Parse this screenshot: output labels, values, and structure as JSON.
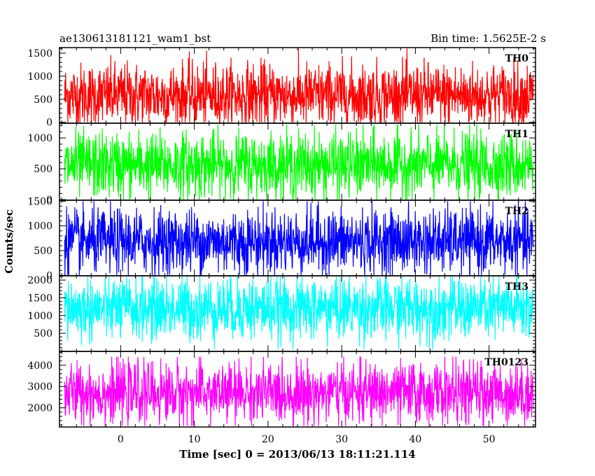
{
  "header": {
    "left_title": "ae130613181121_wam1_bst",
    "right_title": "Bin time: 1.5625E-2 s"
  },
  "axes": {
    "xlabel": "Time [sec] 0 = 2013/06/13 18:11:21.114",
    "ylabel": "Counts/sec"
  },
  "chart_data": {
    "type": "line",
    "x_range": [
      -8.3,
      56.3
    ],
    "x_ticks": [
      0,
      10,
      20,
      30,
      40,
      50
    ],
    "x_minor_step": 2,
    "data_x_range": [
      -7.6,
      56.0
    ],
    "panels": [
      {
        "name": "TH0",
        "color": "#ff0000",
        "ylim": [
          -20,
          1620
        ],
        "y_ticks": [
          0,
          500,
          1000,
          1500
        ],
        "approx_mean": 580,
        "approx_min": 0,
        "approx_max": 1600
      },
      {
        "name": "TH1",
        "color": "#00ff00",
        "ylim": [
          -10,
          1240
        ],
        "y_ticks": [
          0,
          500,
          1000
        ],
        "approx_mean": 560,
        "approx_min": 0,
        "approx_max": 1220
      },
      {
        "name": "TH2",
        "color": "#0000ff",
        "ylim": [
          -10,
          1520
        ],
        "y_ticks": [
          0,
          500,
          1000,
          1500
        ],
        "approx_mean": 680,
        "approx_min": 0,
        "approx_max": 1500
      },
      {
        "name": "TH3",
        "color": "#00ffff",
        "ylim": [
          -10,
          2120
        ],
        "y_ticks": [
          500,
          1000,
          1500,
          2000
        ],
        "approx_mean": 1200,
        "approx_min": 50,
        "approx_max": 2100
      },
      {
        "name": "TH0123",
        "color": "#ff00ff",
        "ylim": [
          1100,
          4650
        ],
        "y_ticks": [
          2000,
          3000,
          4000
        ],
        "approx_mean": 2700,
        "approx_min": 1150,
        "approx_max": 4400
      }
    ]
  }
}
